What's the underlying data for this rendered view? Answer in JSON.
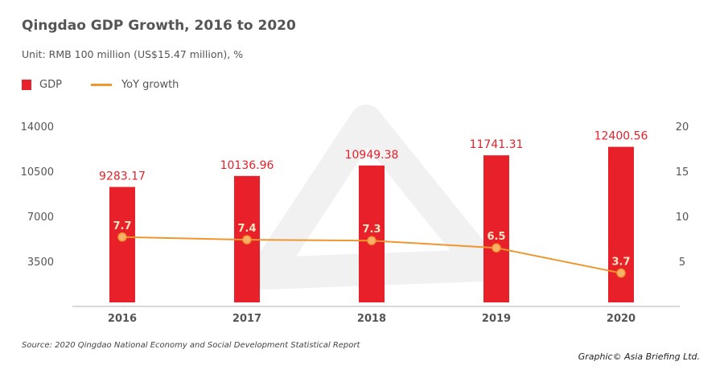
{
  "chart_data": {
    "type": "bar+line",
    "title": "Qingdao GDP Growth, 2016 to 2020",
    "subtitle": "Unit: RMB 100 million (US$15.47 million), %",
    "categories": [
      "2016",
      "2017",
      "2018",
      "2019",
      "2020"
    ],
    "series": [
      {
        "name": "GDP",
        "type": "bar",
        "axis": "left",
        "color": "#e8202a",
        "values": [
          9283.17,
          10136.96,
          10949.38,
          11741.31,
          12400.56
        ]
      },
      {
        "name": "YoY growth",
        "type": "line",
        "axis": "right",
        "color": "#f0962e",
        "values": [
          7.7,
          7.4,
          7.3,
          6.5,
          3.7
        ]
      }
    ],
    "left_axis": {
      "ylim": [
        0,
        14000
      ],
      "ticks": [
        "3500",
        "7000",
        "10500",
        "14000"
      ]
    },
    "right_axis": {
      "ylim": [
        0,
        20
      ],
      "ticks": [
        "5",
        "10",
        "15",
        "20"
      ]
    },
    "grid": false,
    "legend": "top-left",
    "source": "Source: 2020 Qingdao National Economy and Social Development Statistical Report",
    "credit": "Graphic© Asia Briefing Ltd."
  }
}
